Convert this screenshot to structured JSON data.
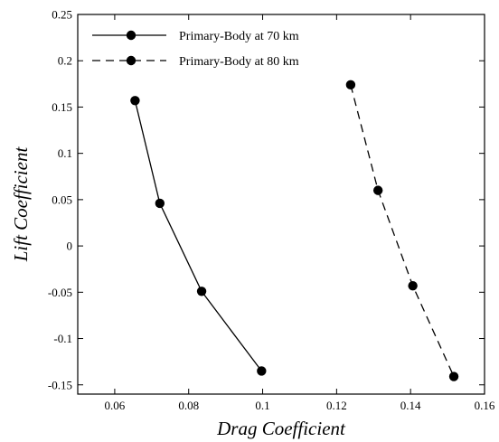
{
  "chart_data": {
    "type": "line",
    "title": "",
    "xlabel": "Drag Coefficient",
    "ylabel": "Lift Coefficient",
    "xlim": [
      0.05,
      0.16
    ],
    "ylim": [
      -0.16,
      0.25
    ],
    "x_ticks": [
      0.06,
      0.08,
      0.1,
      0.12,
      0.14,
      0.16
    ],
    "x_tick_labels": [
      "0.06",
      "0.08",
      "0.1",
      "0.12",
      "0.14",
      "0.16"
    ],
    "y_ticks": [
      -0.15,
      -0.1,
      -0.05,
      0,
      0.05,
      0.1,
      0.15,
      0.2,
      0.25
    ],
    "y_tick_labels": [
      "-0.15",
      "-0.1",
      "-0.05",
      "0",
      "0.05",
      "0.1",
      "0.15",
      "0.2",
      "0.25"
    ],
    "grid": false,
    "legend_position": "top-left",
    "series": [
      {
        "name": "Primary-Body at 70 km",
        "line_style": "solid",
        "marker": "circle",
        "color": "#000000",
        "points": [
          {
            "x": 0.0655,
            "y": 0.157
          },
          {
            "x": 0.0722,
            "y": 0.046
          },
          {
            "x": 0.0835,
            "y": -0.049
          },
          {
            "x": 0.0997,
            "y": -0.135
          }
        ]
      },
      {
        "name": "Primary-Body at 80 km",
        "line_style": "dashed",
        "marker": "circle",
        "color": "#000000",
        "points": [
          {
            "x": 0.1238,
            "y": 0.174
          },
          {
            "x": 0.1312,
            "y": 0.06
          },
          {
            "x": 0.1406,
            "y": -0.043
          },
          {
            "x": 0.1517,
            "y": -0.141
          }
        ]
      }
    ]
  }
}
